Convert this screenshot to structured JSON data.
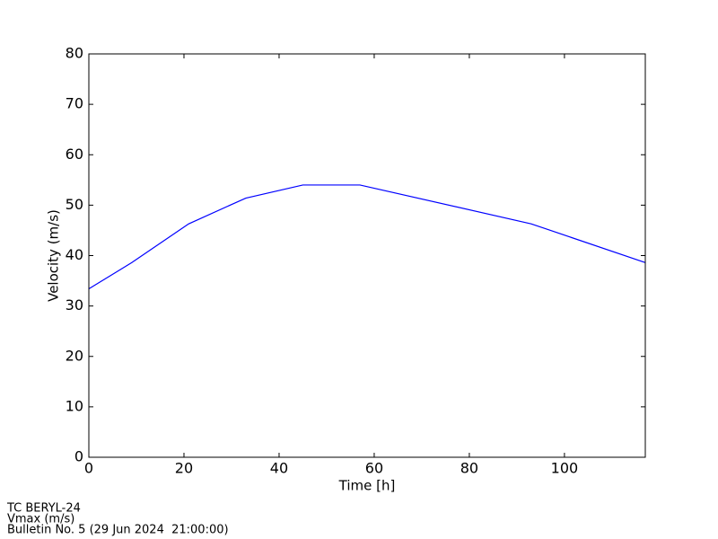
{
  "chart_data": {
    "type": "line",
    "xlabel": "Time [h]",
    "ylabel": "Velocity (m/s)",
    "x": [
      0,
      9,
      21,
      33,
      45,
      57,
      93,
      117
    ],
    "series": [
      {
        "name": "Vmax",
        "color": "#0000ff",
        "values": [
          33.4,
          38.6,
          46.3,
          51.4,
          54,
          54,
          46.3,
          38.6
        ]
      }
    ],
    "xlim": [
      0,
      117
    ],
    "xticks": [
      0,
      20,
      40,
      60,
      80,
      100
    ],
    "ylim": [
      0,
      80
    ],
    "yticks": [
      0,
      10,
      20,
      30,
      40,
      50,
      60,
      70,
      80
    ],
    "grid": false,
    "annotations": [
      "TC BERYL-24",
      "Vmax (m/s)",
      "Bulletin No. 5 (29 Jun 2024  21:00:00)"
    ]
  }
}
